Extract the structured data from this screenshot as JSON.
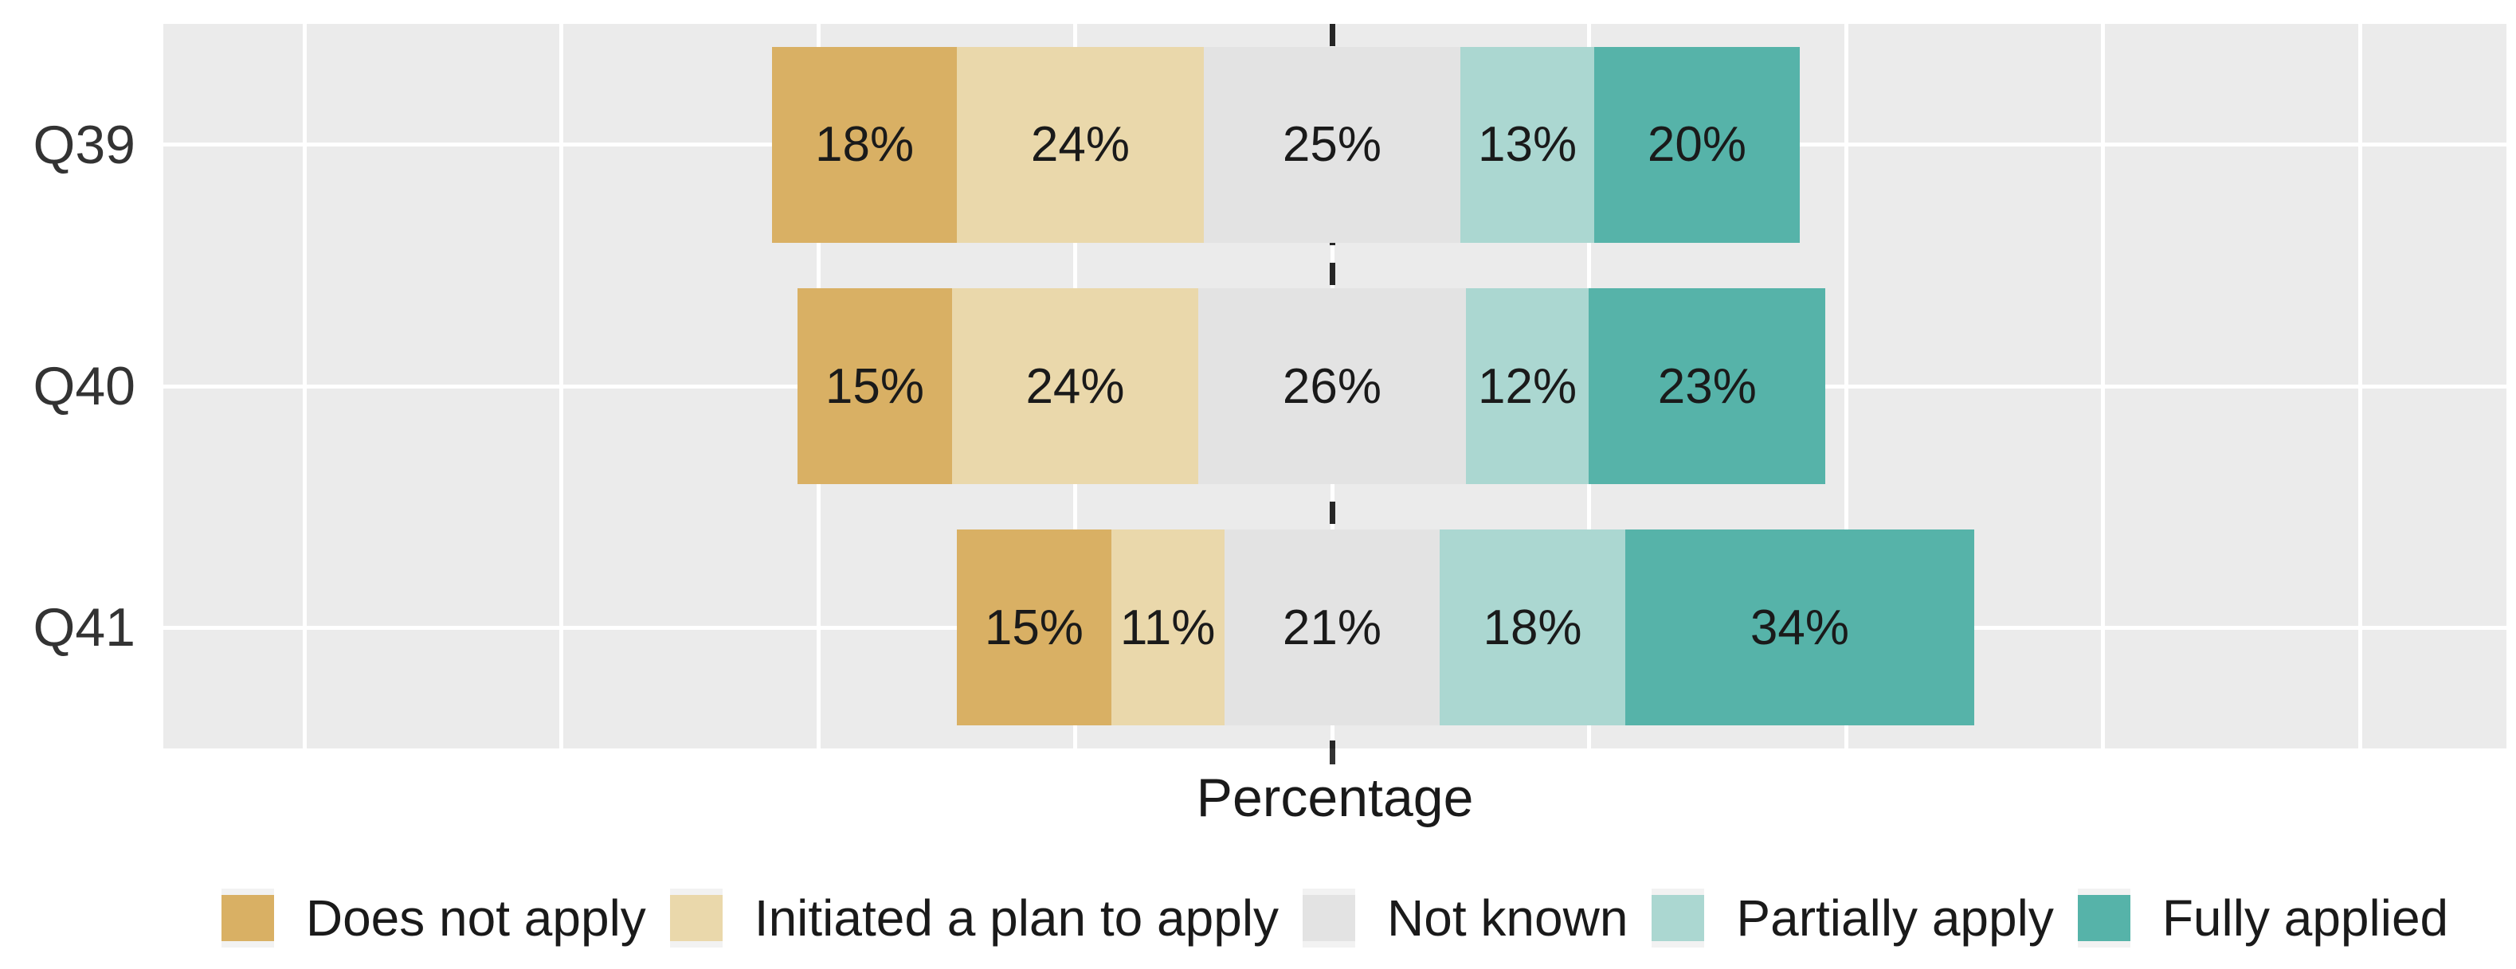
{
  "figure": {
    "background": "#FFFFFF"
  },
  "panel": {
    "background": "#EBEBEB",
    "gridline_color": "#FFFFFF",
    "zero_line_color": "#262626",
    "axis_tick_color": "#333333"
  },
  "chart_data": {
    "type": "bar",
    "variant": "horizontal-diverging-stacked",
    "categories": [
      "Q39",
      "Q40",
      "Q41"
    ],
    "series": [
      {
        "name": "Does not apply",
        "color": "#D9B064",
        "values": [
          18,
          15,
          15
        ]
      },
      {
        "name": "Initiated a plan to apply",
        "color": "#EAD8AB",
        "values": [
          24,
          24,
          11
        ]
      },
      {
        "name": "Not known",
        "color": "#E3E3E3",
        "values": [
          25,
          26,
          21
        ]
      },
      {
        "name": "Partially apply",
        "color": "#ABD7D1",
        "values": [
          13,
          12,
          18
        ]
      },
      {
        "name": "Fully applied",
        "color": "#56B3A9",
        "values": [
          20,
          23,
          34
        ]
      }
    ],
    "bar_labels": [
      [
        "18%",
        "24%",
        "25%",
        "13%",
        "20%"
      ],
      [
        "15%",
        "24%",
        "26%",
        "12%",
        "23%"
      ],
      [
        "15%",
        "11%",
        "21%",
        "18%",
        "34%"
      ]
    ],
    "xlabel": "Percentage",
    "value_label_suffix": "%",
    "axis": {
      "x_range_percent": [
        -114,
        114
      ],
      "x_gridline_spacing_percent": 25,
      "zero_reference_line": "dashed",
      "neutral_category": "Not known",
      "neutral_split": "centered-on-zero"
    },
    "legend_position": "bottom",
    "grid": "major-only"
  }
}
